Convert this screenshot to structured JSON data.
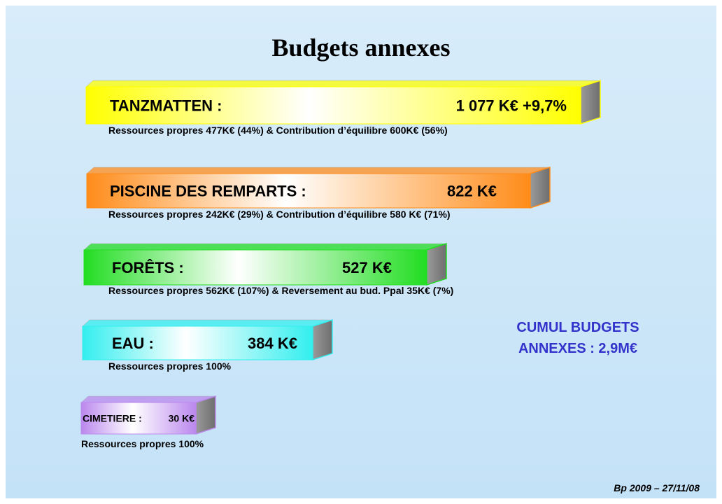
{
  "title": "Budgets annexes",
  "budgets": [
    {
      "name": "TANZMATTEN :",
      "amount": "1 077 K€ +9,7%",
      "detail": "Ressources propres 477K€ (44%) & Contribution d’équilibre 600K€ (56%)"
    },
    {
      "name": "PISCINE DES REMPARTS :",
      "amount": "822 K€",
      "detail": "Ressources propres 242K€ (29%) & Contribution d’équilibre 580 K€ (71%)"
    },
    {
      "name": "FORÊTS :",
      "amount": "527 K€",
      "detail": "Ressources propres 562K€  (107%) & Reversement  au bud. Ppal 35K€ (7%)"
    },
    {
      "name": "EAU :",
      "amount": "384 K€",
      "detail": "Ressources propres 100%"
    },
    {
      "name": "CIMETIERE :",
      "amount": "30 K€",
      "detail": "Ressources propres 100%"
    }
  ],
  "cumul": [
    "CUMUL BUDGETS",
    "ANNEXES : 2,9M€"
  ],
  "footer": "Bp 2009 – 27/11/08"
}
